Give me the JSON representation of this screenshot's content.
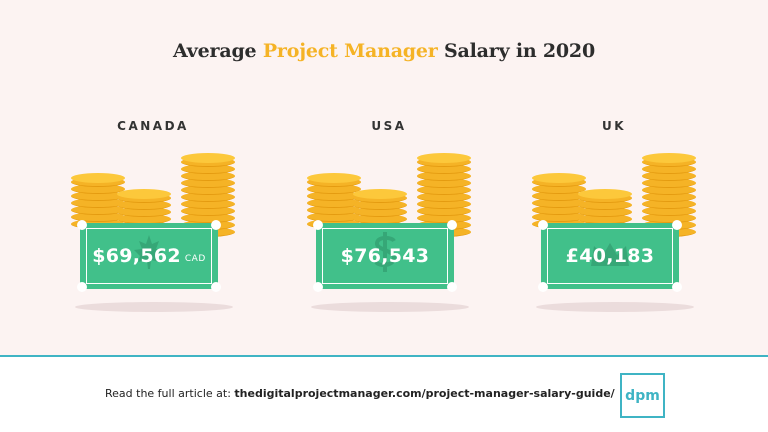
{
  "title": {
    "prefix": "Average ",
    "highlight": "Project Manager",
    "suffix": " Salary in 2020"
  },
  "colors": {
    "accent": "#f5b326",
    "bill_green": "#41c08a",
    "brand_teal": "#3fb4c4"
  },
  "countries": [
    {
      "name": "CANADA",
      "salary": "$69,562",
      "currency_note": "CAD",
      "watermark_icon": "maple-leaf-icon"
    },
    {
      "name": "USA",
      "salary": "$76,543",
      "currency_note": "",
      "watermark_icon": "dollar-sign-icon"
    },
    {
      "name": "UK",
      "salary": "£40,183",
      "currency_note": "",
      "watermark_icon": "crown-icon"
    }
  ],
  "footer": {
    "prefix": "Read the full article at: ",
    "link": "thedigitalprojectmanager.com/project-manager-salary-guide/"
  },
  "logo": {
    "text": "dpm"
  }
}
